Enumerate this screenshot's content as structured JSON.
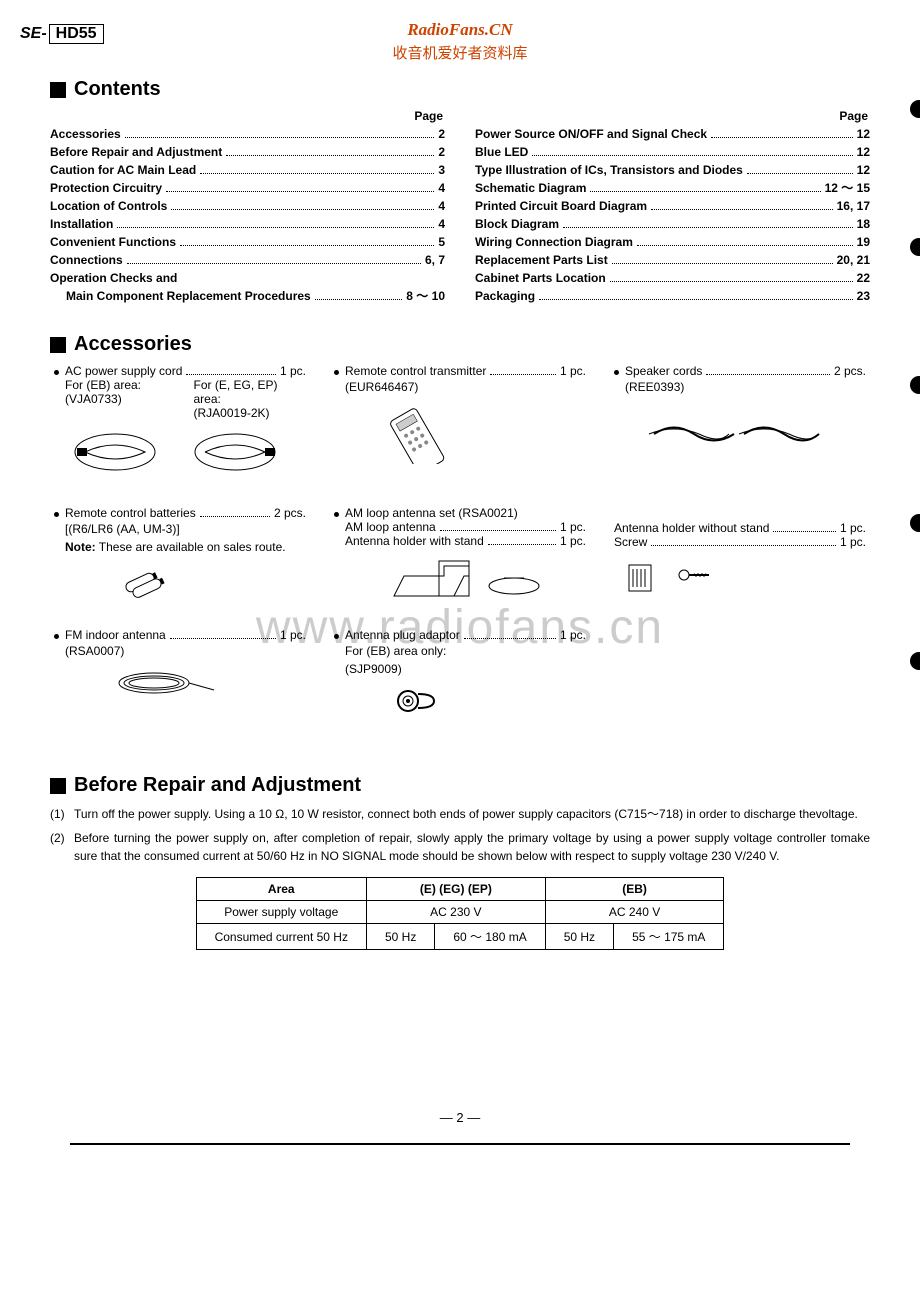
{
  "model_prefix": "SE-",
  "model_num": "HD55",
  "brand": "RadioFans.CN",
  "brand_sub": "收音机爱好者资料库",
  "watermark": "www.radiofans.cn",
  "sections": {
    "contents": "Contents",
    "accessories": "Accessories",
    "repair": "Before Repair and Adjustment"
  },
  "page_label": "Page",
  "toc_left": [
    {
      "t": "Accessories",
      "p": "2",
      "b": true
    },
    {
      "t": "Before Repair and Adjustment",
      "p": "2",
      "b": true
    },
    {
      "t": "Caution for AC Main Lead",
      "p": "3",
      "b": true
    },
    {
      "t": "Protection Circuitry",
      "p": "4",
      "b": true
    },
    {
      "t": "Location of Controls",
      "p": "4",
      "b": true
    },
    {
      "t": "Installation",
      "p": "4",
      "b": true
    },
    {
      "t": "Convenient Functions",
      "p": "5",
      "b": true
    },
    {
      "t": "Connections",
      "p": "6, 7",
      "b": true
    }
  ],
  "toc_left_noline": "Operation Checks and",
  "toc_left_indent": {
    "t": "Main Component Replacement Procedures",
    "p": "8 ～ 10",
    "b": true
  },
  "toc_right": [
    {
      "t": "Power Source ON/OFF and Signal Check",
      "p": "12",
      "b": true
    },
    {
      "t": "Blue LED",
      "p": "12",
      "b": true
    },
    {
      "t": "Type Illustration of ICs, Transistors and Diodes",
      "p": "12",
      "b": true
    },
    {
      "t": "Schematic Diagram",
      "p": "12 ～ 15",
      "b": true
    },
    {
      "t": "Printed Circuit Board Diagram",
      "p": "16, 17",
      "b": true
    },
    {
      "t": "Block Diagram",
      "p": "18",
      "b": true
    },
    {
      "t": "Wiring Connection Diagram",
      "p": "19",
      "b": true
    },
    {
      "t": "Replacement Parts List",
      "p": "20, 21",
      "b": true
    },
    {
      "t": "Cabinet Parts Location",
      "p": "22",
      "b": true
    },
    {
      "t": "Packaging",
      "p": "23",
      "b": true
    }
  ],
  "acc": {
    "power": {
      "label": "AC power supply cord",
      "qty": "1 pc.",
      "area1": "For (EB) area:",
      "code1": "(VJA0733)",
      "area2": "For (E, EG, EP) area:",
      "code2": "(RJA0019-2K)"
    },
    "remote": {
      "label": "Remote control transmitter",
      "qty": "1 pc.",
      "code": "(EUR646467)"
    },
    "speaker": {
      "label": "Speaker cords",
      "qty": "2 pcs.",
      "code": "(REE0393)"
    },
    "batt": {
      "label": "Remote control batteries",
      "qty": "2 pcs.",
      "code": "[(R6/LR6 (AA, UM-3)]",
      "note_label": "Note:",
      "note_text": "These are available on sales route."
    },
    "amloop": {
      "label": "AM loop antenna set (RSA0021)",
      "sub1": "AM loop antenna",
      "sub1q": "1 pc.",
      "sub2": "Antenna holder with stand",
      "sub2q": "1 pc."
    },
    "amloop_r": {
      "sub1": "Antenna holder without stand",
      "sub1q": "1 pc.",
      "sub2": "Screw",
      "sub2q": "1 pc."
    },
    "fm": {
      "label": "FM indoor antenna",
      "qty": "1 pc.",
      "code": "(RSA0007)"
    },
    "plug": {
      "label": "Antenna plug adaptor",
      "qty": "1 pc.",
      "sub1": "For (EB) area only:",
      "code": "(SJP9009)"
    }
  },
  "repair": {
    "p1_num": "(1)",
    "p1": "Turn off the power supply. Using a 10 Ω, 10 W resistor, connect both ends of power supply capacitors (C715～718) in order to discharge thevoltage.",
    "p2_num": "(2)",
    "p2": "Before turning the power supply on, after completion of repair, slowly apply the primary voltage by using a power supply voltage controller tomake sure that the consumed current at 50/60 Hz in NO SIGNAL mode should be shown below with respect to supply voltage 230 V/240 V."
  },
  "table": {
    "h_area": "Area",
    "h_e": "(E) (EG) (EP)",
    "h_eb": "(EB)",
    "r1": "Power supply voltage",
    "r1_e": "AC 230 V",
    "r1_eb": "AC 240 V",
    "r2": "Consumed current 50 Hz",
    "r2_e_hz": "50 Hz",
    "r2_e_ma": "60 ～ 180 mA",
    "r2_eb_hz": "50 Hz",
    "r2_eb_ma": "55 ～ 175 mA"
  },
  "page_number": "2",
  "colors": {
    "brand": "#cc4400",
    "text": "#000000",
    "watermark": "#cccccc"
  }
}
